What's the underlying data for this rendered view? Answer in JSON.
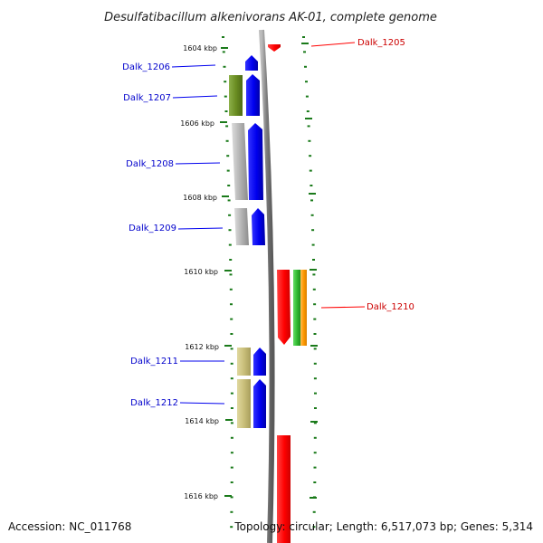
{
  "title": "Desulfatibacillum alkenivorans AK-01, complete genome",
  "accession": "Accession: NC_011768",
  "summary": "Topology: circular; Length: 6,517,073 bp; Genes: 5,314",
  "colors": {
    "blue": "#0000ee",
    "red": "#ff0000",
    "olive": "#6b8e23",
    "gray": "#b3b3b3",
    "khaki": "#c9bf7a",
    "green": "#33bb33",
    "orange": "#ff9900",
    "tickmark": "#1a7a1a",
    "backbone": "#8a8a8a"
  },
  "scale_ticks": [
    {
      "label": "1604 kbp"
    },
    {
      "label": "1606 kbp"
    },
    {
      "label": "1608 kbp"
    },
    {
      "label": "1610 kbp"
    },
    {
      "label": "1612 kbp"
    },
    {
      "label": "1614 kbp"
    },
    {
      "label": "1616 kbp"
    }
  ],
  "genes": [
    {
      "name": "Dalk_1205",
      "color": "red"
    },
    {
      "name": "Dalk_1206",
      "color": "blue"
    },
    {
      "name": "Dalk_1207",
      "color": "blue"
    },
    {
      "name": "Dalk_1208",
      "color": "blue"
    },
    {
      "name": "Dalk_1209",
      "color": "blue"
    },
    {
      "name": "Dalk_1210",
      "color": "red"
    },
    {
      "name": "Dalk_1211",
      "color": "blue"
    },
    {
      "name": "Dalk_1212",
      "color": "blue"
    }
  ]
}
